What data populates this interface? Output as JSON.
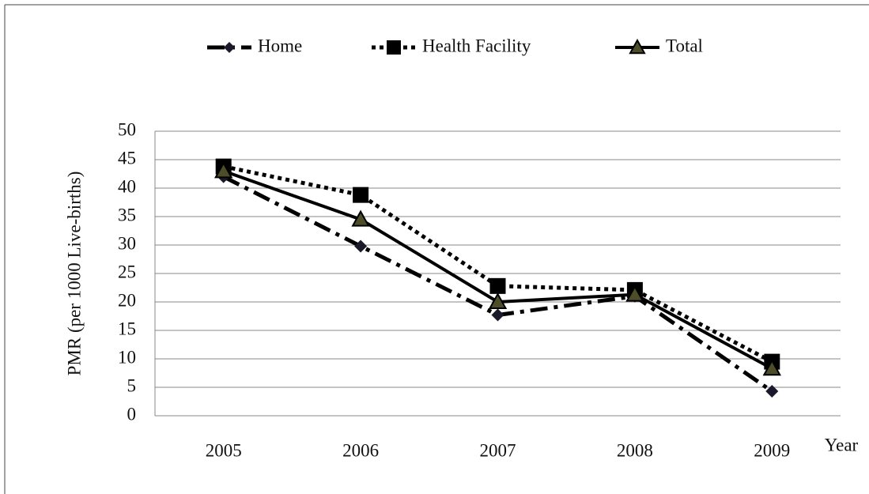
{
  "chart_data": {
    "type": "line",
    "y_label": "PMR (per 1000 Live-births)",
    "x_label": "Year",
    "categories": [
      "2005",
      "2006",
      "2007",
      "2008",
      "2009"
    ],
    "series": [
      {
        "name": "Home",
        "color": "#000000",
        "dash": "dash-dot",
        "marker": "diamond",
        "values": [
          42,
          29.8,
          17.7,
          21,
          4.3
        ]
      },
      {
        "name": "Health Facility",
        "color": "#000000",
        "dash": "dot",
        "marker": "square",
        "values": [
          43.8,
          38.8,
          22.8,
          22.1,
          9.5
        ]
      },
      {
        "name": "Total",
        "color": "#000000",
        "dash": "solid",
        "marker": "triangle",
        "values": [
          43,
          34.5,
          20,
          21.3,
          8.3
        ]
      }
    ],
    "ylim": [
      0,
      50
    ],
    "yticks": [
      0,
      5,
      10,
      15,
      20,
      25,
      30,
      35,
      40,
      45,
      50
    ],
    "grid": true,
    "legend": "top"
  }
}
